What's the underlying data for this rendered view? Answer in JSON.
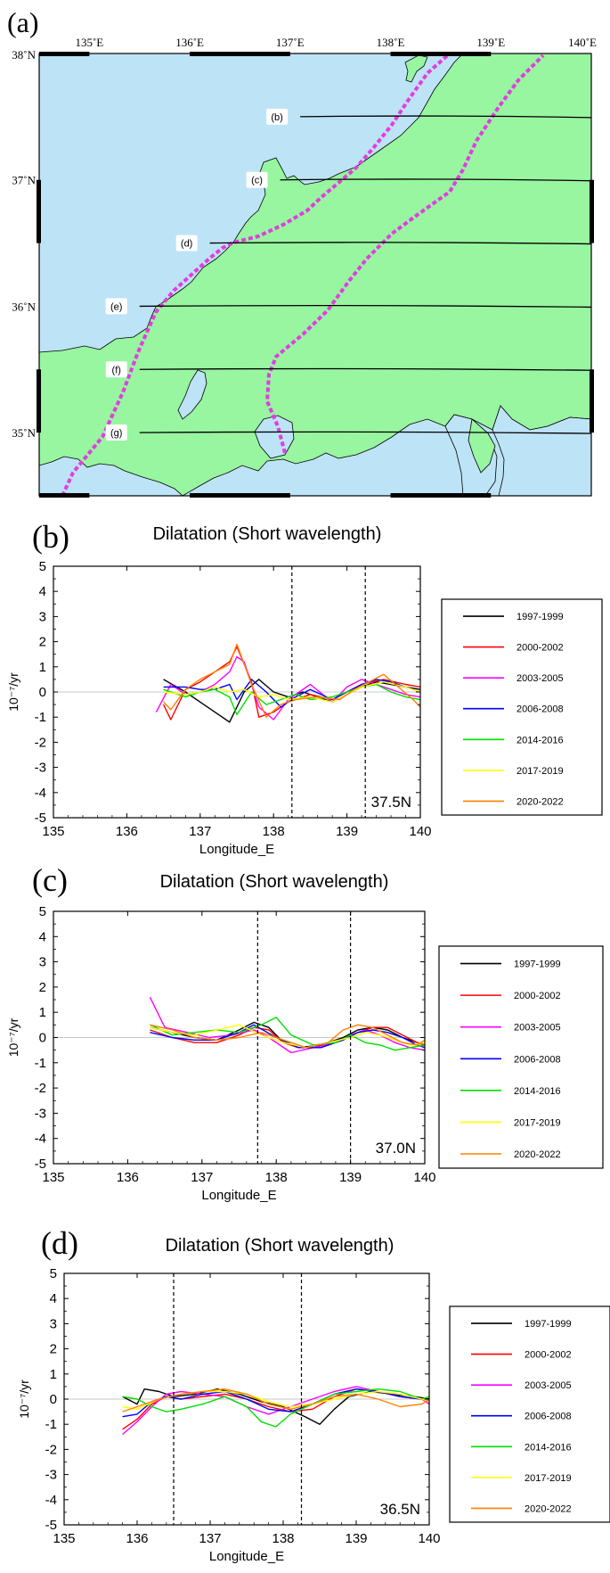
{
  "chart_data": [
    {
      "type": "map",
      "panel_label": "(a)",
      "lon_ticks": [
        "135˚E",
        "136˚E",
        "137˚E",
        "138˚E",
        "139˚E",
        "140˚E"
      ],
      "lat_ticks": [
        "38˚N",
        "37˚N",
        "36˚N",
        "35˚N"
      ],
      "profiles": [
        {
          "label": "(b)",
          "lat": 37.5,
          "lon_start": 137.1
        },
        {
          "label": "(c)",
          "lat": 37.0,
          "lon_start": 136.9
        },
        {
          "label": "(d)",
          "lat": 36.5,
          "lon_start": 136.2
        },
        {
          "label": "(e)",
          "lat": 36.0,
          "lon_start": 135.5
        },
        {
          "label": "(f)",
          "lat": 35.5,
          "lon_start": 135.5
        },
        {
          "label": "(g)",
          "lat": 35.0,
          "lon_start": 135.5
        }
      ],
      "colors": {
        "sea": "#bde3f6",
        "land": "#98f5a0",
        "boundary": "#e23ce2"
      }
    },
    {
      "type": "line",
      "panel_label": "(b)",
      "title": "Dilatation (Short wavelength)",
      "xlabel": "Longitude_E",
      "ylabel": "10⁻⁷/yr",
      "xlim": [
        135,
        140
      ],
      "ylim": [
        -5,
        5
      ],
      "xticks": [
        "135",
        "136",
        "137",
        "138",
        "139",
        "140"
      ],
      "yticks": [
        "5",
        "4",
        "3",
        "2",
        "1",
        "0",
        "-1",
        "-2",
        "-3",
        "-4",
        "-5"
      ],
      "vlines": [
        138.25,
        139.25
      ],
      "annotation": "37.5N",
      "series": [
        {
          "name": "1997-1999",
          "color": "#000000",
          "x": [
            136.5,
            136.8,
            137.0,
            137.2,
            137.4,
            137.6,
            137.8,
            138.0,
            138.2,
            138.4,
            138.6,
            138.8,
            139.0,
            139.2,
            139.4,
            139.6,
            139.8,
            140.0
          ],
          "y": [
            0.5,
            0.0,
            -0.4,
            -0.8,
            -1.2,
            0.0,
            0.5,
            0.0,
            -0.2,
            0.0,
            -0.2,
            -0.4,
            -0.1,
            0.2,
            0.4,
            0.3,
            0.2,
            0.1
          ]
        },
        {
          "name": "2000-2002",
          "color": "#ff0000",
          "x": [
            136.5,
            136.6,
            136.8,
            137.0,
            137.2,
            137.4,
            137.5,
            137.7,
            137.8,
            138.0,
            138.2,
            138.5,
            138.8,
            139.0,
            139.2,
            139.5,
            139.8,
            140.0
          ],
          "y": [
            -0.5,
            -1.1,
            0.1,
            0.4,
            0.8,
            1.2,
            1.8,
            0.4,
            -1.0,
            -0.8,
            -0.4,
            -0.1,
            -0.3,
            0.0,
            0.3,
            0.5,
            0.3,
            0.2
          ]
        },
        {
          "name": "2003-2005",
          "color": "#ff00ff",
          "x": [
            136.4,
            136.6,
            136.8,
            137.0,
            137.2,
            137.4,
            137.5,
            137.6,
            137.8,
            138.0,
            138.2,
            138.5,
            138.8,
            139.0,
            139.2,
            139.4,
            139.6,
            139.8,
            140.0
          ],
          "y": [
            -0.8,
            0.3,
            -0.1,
            0.0,
            0.3,
            0.8,
            1.4,
            1.2,
            -0.6,
            -1.1,
            -0.3,
            0.3,
            -0.4,
            0.2,
            0.5,
            0.3,
            0.1,
            -0.1,
            -0.2
          ]
        },
        {
          "name": "2006-2008",
          "color": "#0000ff",
          "x": [
            136.5,
            136.8,
            137.0,
            137.2,
            137.4,
            137.5,
            137.7,
            137.9,
            138.1,
            138.3,
            138.5,
            138.8,
            139.0,
            139.2,
            139.4,
            139.6,
            139.8,
            140.0
          ],
          "y": [
            0.2,
            0.2,
            0.1,
            0.1,
            0.3,
            -0.3,
            0.5,
            0.0,
            -0.6,
            -0.2,
            0.1,
            -0.3,
            0.0,
            0.3,
            0.5,
            0.4,
            0.2,
            0.0
          ]
        },
        {
          "name": "2014-2016",
          "color": "#00e000",
          "x": [
            136.5,
            136.8,
            137.0,
            137.2,
            137.4,
            137.5,
            137.7,
            137.9,
            138.1,
            138.3,
            138.5,
            138.8,
            139.0,
            139.2,
            139.4,
            139.6,
            139.8,
            140.0
          ],
          "y": [
            0.1,
            -0.2,
            0.0,
            0.1,
            -0.2,
            -0.9,
            0.0,
            -0.5,
            -0.3,
            -0.1,
            -0.3,
            -0.2,
            0.0,
            0.2,
            0.3,
            0.0,
            -0.2,
            -0.3
          ]
        },
        {
          "name": "2017-2019",
          "color": "#ffff00",
          "x": [
            136.5,
            136.8,
            137.0,
            137.2,
            137.4,
            137.6,
            137.8,
            138.0,
            138.2,
            138.5,
            138.8,
            139.0,
            139.2,
            139.5,
            139.8,
            140.0
          ],
          "y": [
            0.0,
            -0.1,
            0.0,
            0.2,
            0.0,
            0.1,
            -0.2,
            -0.1,
            -0.3,
            -0.2,
            -0.4,
            -0.1,
            0.2,
            0.4,
            0.2,
            0.0
          ]
        },
        {
          "name": "2020-2022",
          "color": "#ff8000",
          "x": [
            136.5,
            136.6,
            136.8,
            137.0,
            137.2,
            137.4,
            137.5,
            137.7,
            137.9,
            138.1,
            138.3,
            138.6,
            138.9,
            139.1,
            139.3,
            139.5,
            139.7,
            139.9,
            140.0
          ],
          "y": [
            -0.4,
            -0.7,
            0.1,
            0.5,
            0.8,
            1.1,
            1.9,
            0.3,
            -1.0,
            -0.5,
            -0.3,
            -0.2,
            -0.3,
            0.1,
            0.4,
            0.7,
            0.2,
            -0.3,
            -0.6
          ]
        }
      ]
    },
    {
      "type": "line",
      "panel_label": "(c)",
      "title": "Dilatation (Short wavelength)",
      "xlabel": "Longitude_E",
      "ylabel": "10⁻⁷/yr",
      "xlim": [
        135,
        140
      ],
      "ylim": [
        -5,
        5
      ],
      "xticks": [
        "135",
        "136",
        "137",
        "138",
        "139",
        "140"
      ],
      "yticks": [
        "5",
        "4",
        "3",
        "2",
        "1",
        "0",
        "-1",
        "-2",
        "-3",
        "-4",
        "-5"
      ],
      "vlines": [
        137.75,
        139.0
      ],
      "annotation": "37.0N",
      "series": [
        {
          "name": "1997-1999",
          "color": "#000000",
          "x": [
            136.3,
            136.6,
            136.9,
            137.2,
            137.5,
            137.7,
            137.9,
            138.1,
            138.3,
            138.6,
            138.9,
            139.1,
            139.3,
            139.5,
            139.7,
            139.9,
            140.0
          ],
          "y": [
            0.4,
            0.2,
            0.0,
            -0.1,
            0.3,
            0.6,
            0.4,
            -0.2,
            -0.4,
            -0.3,
            0.0,
            0.3,
            0.4,
            0.3,
            0.0,
            -0.2,
            -0.3
          ]
        },
        {
          "name": "2000-2002",
          "color": "#ff0000",
          "x": [
            136.3,
            136.6,
            136.9,
            137.2,
            137.5,
            137.7,
            137.9,
            138.1,
            138.3,
            138.6,
            138.9,
            139.1,
            139.3,
            139.5,
            139.7,
            139.9,
            140.0
          ],
          "y": [
            0.3,
            0.0,
            -0.2,
            -0.2,
            0.1,
            0.4,
            0.3,
            -0.2,
            -0.4,
            -0.4,
            -0.1,
            0.2,
            0.4,
            0.4,
            0.1,
            -0.2,
            -0.3
          ]
        },
        {
          "name": "2003-2005",
          "color": "#ff00ff",
          "x": [
            136.3,
            136.5,
            136.8,
            137.1,
            137.4,
            137.7,
            137.9,
            138.2,
            138.5,
            138.8,
            139.0,
            139.2,
            139.4,
            139.6,
            139.8,
            140.0
          ],
          "y": [
            1.6,
            0.4,
            0.2,
            0.0,
            0.1,
            0.3,
            0.0,
            -0.6,
            -0.4,
            -0.2,
            0.1,
            0.3,
            0.1,
            -0.2,
            -0.4,
            -0.5
          ]
        },
        {
          "name": "2006-2008",
          "color": "#0000ff",
          "x": [
            136.3,
            136.6,
            136.9,
            137.2,
            137.5,
            137.7,
            138.0,
            138.3,
            138.6,
            138.9,
            139.1,
            139.3,
            139.5,
            139.7,
            139.9,
            140.0
          ],
          "y": [
            0.2,
            0.0,
            -0.1,
            -0.1,
            0.2,
            0.5,
            0.0,
            -0.4,
            -0.4,
            -0.1,
            0.2,
            0.3,
            0.2,
            0.0,
            -0.3,
            -0.4
          ]
        },
        {
          "name": "2014-2016",
          "color": "#00e000",
          "x": [
            136.3,
            136.6,
            136.9,
            137.2,
            137.5,
            137.8,
            138.0,
            138.2,
            138.5,
            138.8,
            139.0,
            139.2,
            139.4,
            139.6,
            139.8,
            140.0
          ],
          "y": [
            0.5,
            0.1,
            0.2,
            0.3,
            0.2,
            0.5,
            0.8,
            0.1,
            -0.3,
            -0.2,
            0.1,
            -0.2,
            -0.3,
            -0.5,
            -0.4,
            -0.3
          ]
        },
        {
          "name": "2017-2019",
          "color": "#ffff00",
          "x": [
            136.3,
            136.6,
            136.9,
            137.2,
            137.5,
            137.8,
            138.1,
            138.4,
            138.7,
            139.0,
            139.2,
            139.4,
            139.6,
            139.8,
            140.0
          ],
          "y": [
            0.4,
            0.2,
            0.1,
            0.3,
            0.5,
            0.1,
            -0.2,
            -0.4,
            -0.2,
            0.0,
            0.2,
            0.1,
            -0.1,
            -0.3,
            -0.2
          ]
        },
        {
          "name": "2020-2022",
          "color": "#ff8000",
          "x": [
            136.3,
            136.6,
            136.9,
            137.2,
            137.5,
            137.8,
            138.1,
            138.4,
            138.7,
            138.9,
            139.1,
            139.3,
            139.5,
            139.7,
            139.9,
            140.0
          ],
          "y": [
            0.5,
            0.3,
            0.0,
            -0.1,
            0.0,
            0.2,
            -0.1,
            -0.4,
            -0.2,
            0.3,
            0.5,
            0.4,
            0.1,
            -0.2,
            -0.3,
            -0.1
          ]
        }
      ]
    },
    {
      "type": "line",
      "panel_label": "(d)",
      "title": "Dilatation (Short wavelength)",
      "xlabel": "Longitude_E",
      "ylabel": "10⁻⁷/yr",
      "xlim": [
        135,
        140
      ],
      "ylim": [
        -5,
        5
      ],
      "xticks": [
        "135",
        "136",
        "137",
        "138",
        "139",
        "140"
      ],
      "yticks": [
        "5",
        "4",
        "3",
        "2",
        "1",
        "0",
        "-1",
        "-2",
        "-3",
        "-4",
        "-5"
      ],
      "vlines": [
        136.5,
        138.25
      ],
      "annotation": "36.5N",
      "series": [
        {
          "name": "1997-1999",
          "color": "#000000",
          "x": [
            135.8,
            136.0,
            136.1,
            136.3,
            136.5,
            136.8,
            137.1,
            137.4,
            137.7,
            138.0,
            138.3,
            138.5,
            138.7,
            138.9,
            139.2,
            139.5,
            139.8,
            140.0
          ],
          "y": [
            0.1,
            -0.2,
            0.4,
            0.3,
            0.1,
            0.2,
            0.4,
            0.2,
            -0.1,
            -0.3,
            -0.7,
            -1.0,
            -0.4,
            0.1,
            0.3,
            0.2,
            0.1,
            0.0
          ]
        },
        {
          "name": "2000-2002",
          "color": "#ff0000",
          "x": [
            135.8,
            136.0,
            136.2,
            136.4,
            136.6,
            136.9,
            137.2,
            137.5,
            137.8,
            138.1,
            138.4,
            138.7,
            139.0,
            139.3,
            139.6,
            139.9,
            140.0
          ],
          "y": [
            -1.2,
            -0.8,
            -0.2,
            0.1,
            0.0,
            0.1,
            0.2,
            0.0,
            -0.3,
            -0.5,
            -0.4,
            0.1,
            0.4,
            0.3,
            0.1,
            0.0,
            -0.1
          ]
        },
        {
          "name": "2003-2005",
          "color": "#ff00ff",
          "x": [
            135.8,
            136.0,
            136.2,
            136.4,
            136.6,
            136.9,
            137.2,
            137.5,
            137.8,
            138.1,
            138.4,
            138.7,
            139.0,
            139.3,
            139.6,
            139.9,
            140.0
          ],
          "y": [
            -1.4,
            -0.9,
            -0.3,
            0.2,
            0.3,
            0.2,
            0.1,
            -0.3,
            -0.6,
            -0.3,
            0.0,
            0.3,
            0.5,
            0.3,
            0.1,
            0.0,
            -0.2
          ]
        },
        {
          "name": "2006-2008",
          "color": "#0000ff",
          "x": [
            135.8,
            136.0,
            136.2,
            136.4,
            136.6,
            136.9,
            137.2,
            137.5,
            137.8,
            138.1,
            138.4,
            138.7,
            139.0,
            139.3,
            139.6,
            139.9,
            140.0
          ],
          "y": [
            -0.7,
            -0.6,
            -0.1,
            0.1,
            0.0,
            0.2,
            0.3,
            0.0,
            -0.4,
            -0.5,
            -0.2,
            0.2,
            0.4,
            0.3,
            0.1,
            0.0,
            -0.1
          ]
        },
        {
          "name": "2014-2016",
          "color": "#00e000",
          "x": [
            135.8,
            136.0,
            136.2,
            136.4,
            136.6,
            136.9,
            137.2,
            137.5,
            137.7,
            137.9,
            138.1,
            138.4,
            138.7,
            139.0,
            139.3,
            139.6,
            139.9,
            140.0
          ],
          "y": [
            0.1,
            0.0,
            -0.3,
            -0.5,
            -0.4,
            -0.2,
            0.1,
            -0.3,
            -0.9,
            -1.1,
            -0.6,
            -0.2,
            0.2,
            0.3,
            0.4,
            0.3,
            0.0,
            0.1
          ]
        },
        {
          "name": "2017-2019",
          "color": "#ffff00",
          "x": [
            135.8,
            136.0,
            136.3,
            136.6,
            136.9,
            137.2,
            137.5,
            137.8,
            138.1,
            138.4,
            138.7,
            139.0,
            139.3,
            139.6,
            139.9,
            140.0
          ],
          "y": [
            -0.3,
            -0.4,
            0.0,
            0.2,
            0.3,
            0.3,
            0.2,
            -0.1,
            -0.3,
            -0.2,
            0.0,
            0.2,
            0.3,
            0.2,
            0.0,
            -0.1
          ]
        },
        {
          "name": "2020-2022",
          "color": "#ff8000",
          "x": [
            135.8,
            136.0,
            136.3,
            136.6,
            136.9,
            137.2,
            137.5,
            137.8,
            138.1,
            138.4,
            138.7,
            139.0,
            139.3,
            139.6,
            139.9,
            140.0
          ],
          "y": [
            -0.5,
            -0.3,
            0.0,
            0.2,
            0.3,
            0.4,
            0.2,
            -0.2,
            -0.4,
            -0.2,
            0.1,
            0.2,
            0.0,
            -0.3,
            -0.2,
            0.0
          ]
        }
      ]
    }
  ]
}
